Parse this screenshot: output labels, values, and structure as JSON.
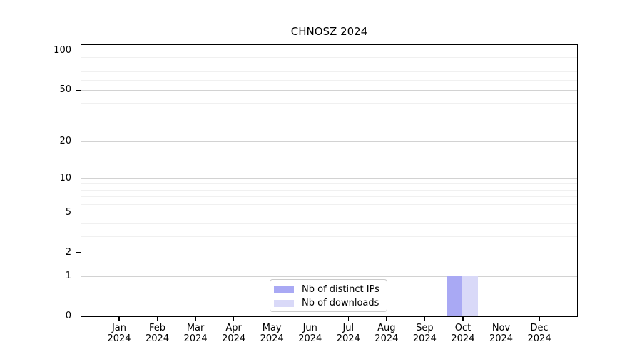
{
  "chart_data": {
    "type": "bar",
    "title": "CHNOSZ 2024",
    "xlabel": "",
    "ylabel": "",
    "y_scale": "log1p",
    "y_axis_max": 110.5,
    "y_major_ticks": [
      0,
      1,
      2,
      5,
      10,
      20,
      50,
      100
    ],
    "y_minor_gridlines": [
      3,
      4,
      6,
      7,
      8,
      9,
      30,
      40,
      60,
      70,
      80,
      90
    ],
    "grid": true,
    "categories": [
      {
        "month": "Jan",
        "year": "2024"
      },
      {
        "month": "Feb",
        "year": "2024"
      },
      {
        "month": "Mar",
        "year": "2024"
      },
      {
        "month": "Apr",
        "year": "2024"
      },
      {
        "month": "May",
        "year": "2024"
      },
      {
        "month": "Jun",
        "year": "2024"
      },
      {
        "month": "Jul",
        "year": "2024"
      },
      {
        "month": "Aug",
        "year": "2024"
      },
      {
        "month": "Sep",
        "year": "2024"
      },
      {
        "month": "Oct",
        "year": "2024"
      },
      {
        "month": "Nov",
        "year": "2024"
      },
      {
        "month": "Dec",
        "year": "2024"
      }
    ],
    "series": [
      {
        "name": "Nb of distinct IPs",
        "color": "#a9a9f4",
        "values": [
          0,
          0,
          0,
          0,
          0,
          0,
          0,
          0,
          0,
          1,
          0,
          0
        ]
      },
      {
        "name": "Nb of downloads",
        "color": "#d9d9f8",
        "values": [
          0,
          0,
          0,
          0,
          0,
          0,
          0,
          0,
          0,
          1,
          0,
          0
        ]
      }
    ],
    "legend": {
      "position": "lower center",
      "entries": [
        "Nb of distinct IPs",
        "Nb of downloads"
      ]
    },
    "colors": {
      "frame": "#000000",
      "major_grid": "#d2d2d2",
      "minor_grid": "#f0f0f0",
      "background": "#ffffff"
    }
  }
}
